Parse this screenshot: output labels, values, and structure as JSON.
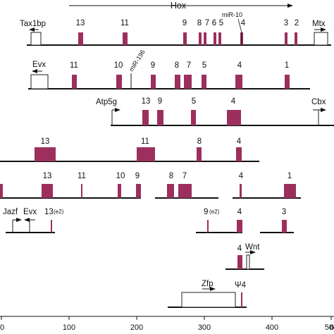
{
  "colors": {
    "gene": "#9c2f5e",
    "line": "#111111",
    "outline": "#222222"
  },
  "header": {
    "title": "Hox"
  },
  "x_axis": {
    "ticks": [
      "0",
      "100",
      "200",
      "300",
      "400",
      "500",
      "6"
    ]
  },
  "row1": {
    "genes": [
      "13",
      "11",
      "9",
      "8",
      "7",
      "6",
      "5",
      "4",
      "3",
      "2"
    ],
    "mir10": "miR-10",
    "left_flank": "Tax1bp",
    "right_flank": "Mtx"
  },
  "row2": {
    "genes": [
      "11",
      "10",
      "9",
      "8",
      "7",
      "5",
      "4",
      "1"
    ],
    "mir196": "miR-196",
    "left_flank": "Evx"
  },
  "row3": {
    "genes": [
      "13",
      "9",
      "5",
      "4"
    ],
    "left_flank": "Atp5g",
    "right_flank": "Cbx"
  },
  "row4": {
    "genes": [
      "13",
      "11",
      "8",
      "4"
    ]
  },
  "row5": {
    "genes": [
      "13",
      "11",
      "10",
      "9",
      "8",
      "7",
      "4",
      "1"
    ]
  },
  "row6": {
    "jazf": "Jazf",
    "evx": "Evx",
    "gene13": "13",
    "gene13_sup": "(e2)",
    "gene9": "9",
    "gene9_sup": "(e2)",
    "gene4": "4",
    "gene3": "3"
  },
  "row7": {
    "gene4": "4",
    "wnt": "Wnt"
  },
  "row8": {
    "zfp": "Zfp",
    "psi4": "Ψ4"
  }
}
